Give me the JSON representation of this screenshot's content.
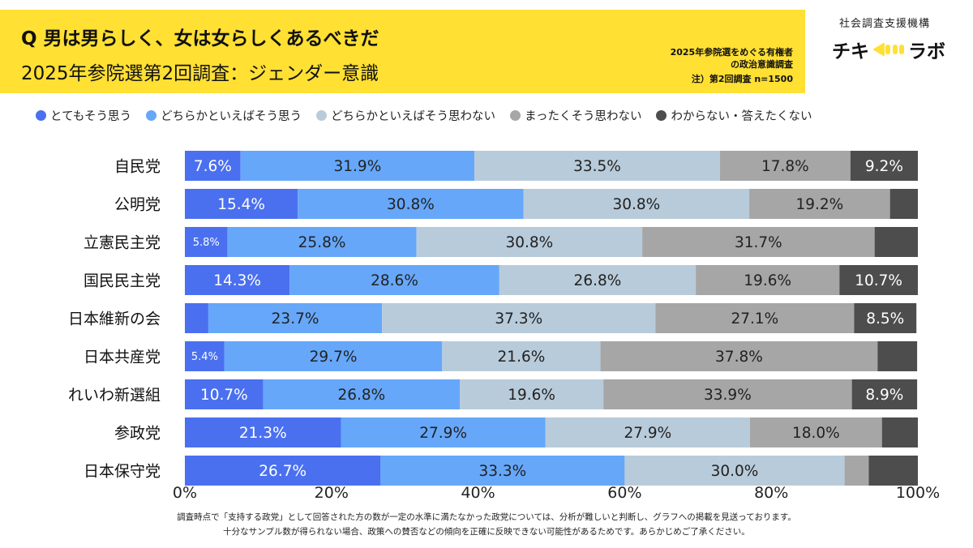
{
  "header": {
    "question": "Q 男は男らしく、女は女らしくあるべきだ",
    "subtitle": "2025年参院選第2回調査：ジェンダー意識",
    "note_line1": "2025年参院選をめぐる有権者",
    "note_line2": "の政治意識調査",
    "note_line3": "注）第2回調査 n=1500"
  },
  "logo": {
    "org_name": "社会調査支援機構",
    "mark_left": "チキ",
    "mark_right": "ラボ",
    "mark_icon": "megaphone-icon",
    "mark_color": "#ffe033"
  },
  "footnotes": {
    "line1": "調査時点で「支持する政党」として回答された方の数が一定の水準に満たなかった政党については、分析が難しいと判断し、グラフへの掲載を見送っております。",
    "line2": "十分なサンプル数が得られない場合、政策への賛否などの傾向を正確に反映できない可能性があるためです。あらかじめご了承ください。"
  },
  "chart_data": {
    "type": "bar",
    "orientation": "horizontal",
    "stacked": true,
    "categories": [
      "自民党",
      "公明党",
      "立憲民主党",
      "国民民主党",
      "日本維新の会",
      "日本共産党",
      "れいわ新選組",
      "参政党",
      "日本保守党"
    ],
    "series": [
      {
        "name": "とてもそう思う",
        "color": "#4a70f0",
        "values": [
          7.6,
          15.4,
          5.8,
          14.3,
          3.2,
          5.4,
          10.7,
          21.3,
          26.7
        ],
        "labels": [
          "7.6%",
          "15.4%",
          "5.8%",
          "14.3%",
          "",
          "5.4%",
          "10.7%",
          "21.3%",
          "26.7%"
        ]
      },
      {
        "name": "どちらかといえばそう思う",
        "color": "#66a7fa",
        "values": [
          31.9,
          30.8,
          25.8,
          28.6,
          23.7,
          29.7,
          26.8,
          27.9,
          33.3
        ],
        "labels": [
          "31.9%",
          "30.8%",
          "25.8%",
          "28.6%",
          "23.7%",
          "29.7%",
          "26.8%",
          "27.9%",
          "33.3%"
        ]
      },
      {
        "name": "どちらかといえばそう思わない",
        "color": "#b8cbda",
        "values": [
          33.5,
          30.8,
          30.8,
          26.8,
          37.3,
          21.6,
          19.6,
          27.9,
          30.0
        ],
        "labels": [
          "33.5%",
          "30.8%",
          "30.8%",
          "26.8%",
          "37.3%",
          "21.6%",
          "19.6%",
          "27.9%",
          "30.0%"
        ]
      },
      {
        "name": "まったくそう思わない",
        "color": "#a6a6a6",
        "values": [
          17.8,
          19.2,
          31.7,
          19.6,
          27.1,
          37.8,
          33.9,
          18.0,
          3.3
        ],
        "labels": [
          "17.8%",
          "19.2%",
          "31.7%",
          "19.6%",
          "27.1%",
          "37.8%",
          "33.9%",
          "18.0%",
          ""
        ]
      },
      {
        "name": "わからない・答えたくない",
        "color": "#4d4d4d",
        "values": [
          9.2,
          3.8,
          5.9,
          10.7,
          8.5,
          5.4,
          8.9,
          4.9,
          6.7
        ],
        "labels": [
          "9.2%",
          "",
          "",
          "10.7%",
          "8.5%",
          "",
          "8.9%",
          "",
          ""
        ]
      }
    ],
    "x_ticks": [
      "0%",
      "20%",
      "40%",
      "60%",
      "80%",
      "100%"
    ],
    "xlim": [
      0,
      100
    ],
    "grid": false,
    "legend_position": "top"
  }
}
